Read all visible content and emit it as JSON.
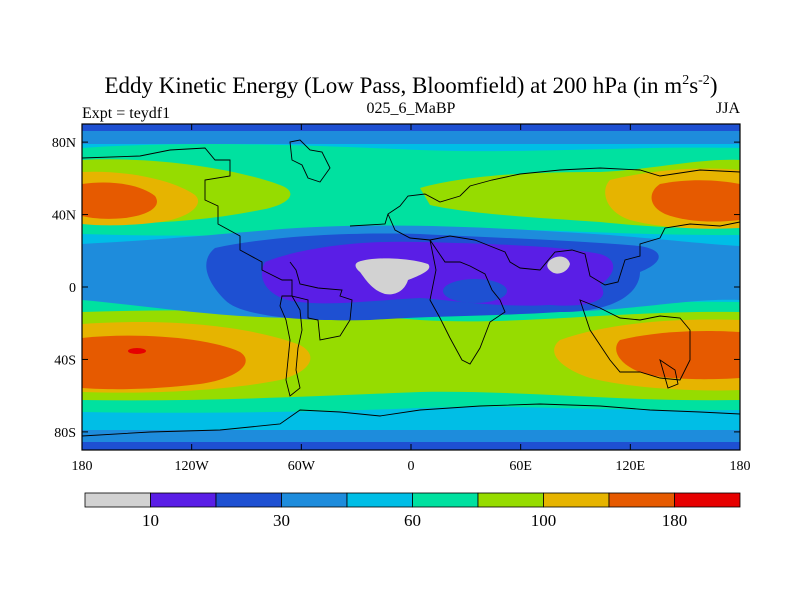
{
  "figure": {
    "title_main": "Eddy Kinetic Energy (Low Pass, Bloomfield) at 200 hPa (in m",
    "title_sup1": "2",
    "title_mid": "s",
    "title_sup2": "-2",
    "title_close": ")",
    "left_label": "Expt = teydf1",
    "center_label": "025_6_MaBP",
    "right_label": "JJA"
  },
  "map": {
    "lat_ticks": [
      {
        "value": 80,
        "label": "80N"
      },
      {
        "value": 40,
        "label": "40N"
      },
      {
        "value": 0,
        "label": "0"
      },
      {
        "value": -40,
        "label": "40S"
      },
      {
        "value": -80,
        "label": "80S"
      }
    ],
    "lon_ticks": [
      {
        "value": -180,
        "label": "180"
      },
      {
        "value": -120,
        "label": "120W"
      },
      {
        "value": -60,
        "label": "60W"
      },
      {
        "value": 0,
        "label": "0"
      },
      {
        "value": 60,
        "label": "60E"
      },
      {
        "value": 120,
        "label": "120E"
      },
      {
        "value": 180,
        "label": "180"
      }
    ],
    "lon_range": [
      -180,
      180
    ],
    "lat_range": [
      -90,
      90
    ]
  },
  "colorbar": {
    "colors": [
      "#d2d2d2",
      "#5a1ee6",
      "#1e50d2",
      "#1e8cdc",
      "#00bee6",
      "#00e1a0",
      "#96dc00",
      "#e6b400",
      "#e65a00",
      "#e60000"
    ],
    "labels": [
      {
        "boundary": 1,
        "text": "10"
      },
      {
        "boundary": 3,
        "text": "30"
      },
      {
        "boundary": 5,
        "text": "60"
      },
      {
        "boundary": 7,
        "text": "100"
      },
      {
        "boundary": 9,
        "text": "180"
      }
    ]
  }
}
